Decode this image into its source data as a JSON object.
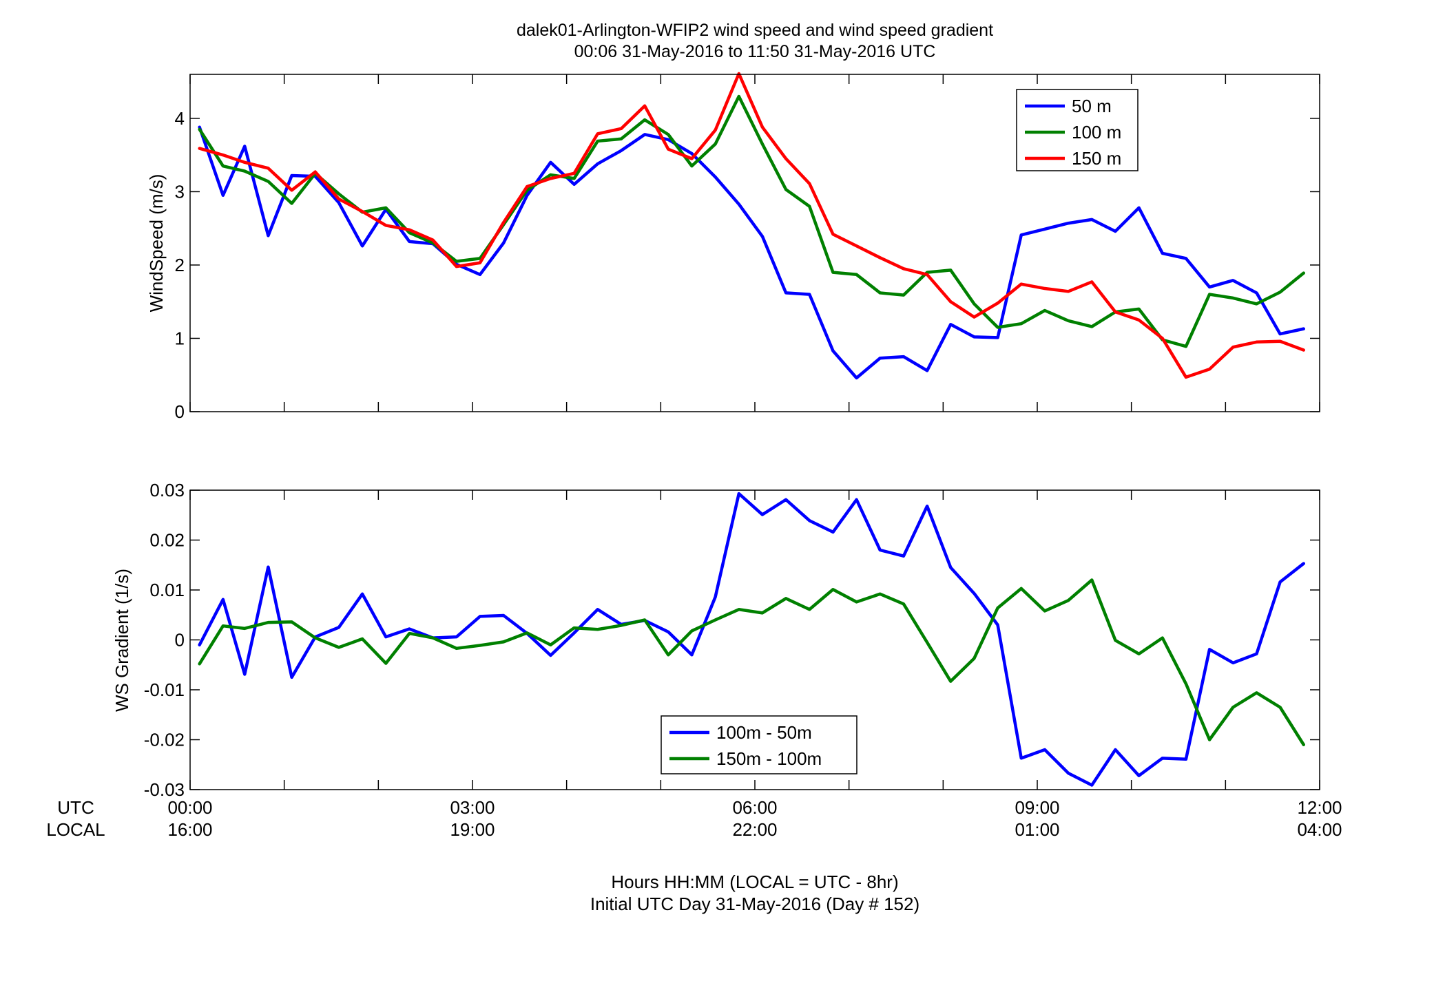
{
  "figure": {
    "title_line1": "dalek01-Arlington-WFIP2  wind speed and wind speed gradient",
    "title_line2": "00:06 31-May-2016 to 11:50 31-May-2016  UTC",
    "x_row_labels": [
      "UTC",
      "LOCAL"
    ],
    "xlabel_line1": "Hours HH:MM  (LOCAL = UTC - 8hr)",
    "xlabel_line2": "Initial UTC Day 31-May-2016 (Day # 152)"
  },
  "chart_data": [
    {
      "type": "line",
      "title": "",
      "xlabel": "",
      "ylabel": "WindSpeed (m/s)",
      "xlim": [
        0,
        12
      ],
      "ylim": [
        0,
        4.6
      ],
      "yticks": [
        0,
        1,
        2,
        3,
        4
      ],
      "ytick_labels": [
        "0",
        "1",
        "2",
        "3",
        "4"
      ],
      "grid": false,
      "legend_position": "top-right",
      "x": [
        0.1,
        0.35,
        0.58,
        0.83,
        1.08,
        1.33,
        1.58,
        1.83,
        2.08,
        2.33,
        2.58,
        2.83,
        3.08,
        3.33,
        3.58,
        3.83,
        4.08,
        4.33,
        4.58,
        4.83,
        5.08,
        5.33,
        5.58,
        5.83,
        6.08,
        6.33,
        6.58,
        6.83,
        7.08,
        7.33,
        7.58,
        7.83,
        8.08,
        8.33,
        8.58,
        8.83,
        9.08,
        9.33,
        9.58,
        9.83,
        10.08,
        10.33,
        10.58,
        10.83,
        11.08,
        11.33,
        11.58,
        11.83
      ],
      "series": [
        {
          "name": "50 m",
          "color": "#0000ff",
          "values": [
            3.88,
            2.95,
            3.62,
            2.4,
            3.22,
            3.21,
            2.85,
            2.26,
            2.76,
            2.32,
            2.29,
            2.01,
            1.87,
            2.3,
            2.95,
            3.4,
            3.1,
            3.38,
            3.56,
            3.78,
            3.71,
            3.52,
            3.2,
            2.83,
            2.39,
            1.62,
            1.6,
            0.83,
            0.46,
            0.73,
            0.75,
            0.56,
            1.19,
            1.02,
            1.01,
            2.41,
            2.49,
            2.57,
            2.62,
            2.46,
            2.78,
            2.16,
            2.09,
            1.7,
            1.79,
            1.62,
            1.06,
            1.13
          ]
        },
        {
          "name": "100 m",
          "color": "#008000",
          "values": [
            3.85,
            3.35,
            3.28,
            3.14,
            2.84,
            3.25,
            2.97,
            2.72,
            2.78,
            2.44,
            2.3,
            2.05,
            2.09,
            2.55,
            3.02,
            3.23,
            3.18,
            3.69,
            3.72,
            3.98,
            3.78,
            3.35,
            3.65,
            4.3,
            3.65,
            3.03,
            2.8,
            1.9,
            1.87,
            1.62,
            1.59,
            1.9,
            1.93,
            1.47,
            1.15,
            1.2,
            1.38,
            1.24,
            1.16,
            1.36,
            1.4,
            0.98,
            0.89,
            1.6,
            1.55,
            1.47,
            1.63,
            1.89
          ]
        },
        {
          "name": "150 m",
          "color": "#ff0000",
          "values": [
            3.59,
            3.5,
            3.4,
            3.32,
            3.02,
            3.27,
            2.9,
            2.73,
            2.54,
            2.48,
            2.34,
            1.98,
            2.03,
            2.58,
            3.07,
            3.18,
            3.25,
            3.79,
            3.86,
            4.17,
            3.58,
            3.45,
            3.84,
            4.61,
            3.88,
            3.45,
            3.11,
            2.42,
            2.26,
            2.1,
            1.95,
            1.87,
            1.5,
            1.29,
            1.48,
            1.74,
            1.68,
            1.64,
            1.77,
            1.36,
            1.25,
            1.0,
            0.47,
            0.58,
            0.88,
            0.95,
            0.96,
            0.84
          ]
        }
      ]
    },
    {
      "type": "line",
      "title": "",
      "xlabel": "",
      "ylabel": "WS Gradient (1/s)",
      "xlim": [
        0,
        12
      ],
      "ylim": [
        -0.03,
        0.03
      ],
      "yticks": [
        -0.03,
        -0.02,
        -0.01,
        0,
        0.01,
        0.02,
        0.03
      ],
      "ytick_labels": [
        "-0.03",
        "-0.02",
        "-0.01",
        "0",
        "0.01",
        "0.02",
        "0.03"
      ],
      "xticks": [
        0,
        3,
        6,
        9,
        12
      ],
      "xtick_labels_utc": [
        "00:00",
        "03:00",
        "06:00",
        "09:00",
        "12:00"
      ],
      "xtick_labels_local": [
        "16:00",
        "19:00",
        "22:00",
        "01:00",
        "04:00"
      ],
      "grid": false,
      "legend_position": "bottom-center",
      "x": [
        0.1,
        0.35,
        0.58,
        0.83,
        1.08,
        1.33,
        1.58,
        1.83,
        2.08,
        2.33,
        2.58,
        2.83,
        3.08,
        3.33,
        3.58,
        3.83,
        4.08,
        4.33,
        4.58,
        4.83,
        5.08,
        5.33,
        5.58,
        5.83,
        6.08,
        6.33,
        6.58,
        6.83,
        7.08,
        7.33,
        7.58,
        7.83,
        8.08,
        8.33,
        8.58,
        8.83,
        9.08,
        9.33,
        9.58,
        9.83,
        10.08,
        10.33,
        10.58,
        10.83,
        11.08,
        11.33,
        11.58,
        11.83
      ],
      "series": [
        {
          "name": "100m - 50m",
          "color": "#0000ff",
          "values": [
            -0.001,
            0.0081,
            -0.0069,
            0.0146,
            -0.0075,
            0.0006,
            0.0025,
            0.0092,
            0.0006,
            0.0022,
            0.0004,
            0.0006,
            0.0047,
            0.0049,
            0.0013,
            -0.0031,
            0.0014,
            0.0061,
            0.0031,
            0.0039,
            0.0016,
            -0.003,
            0.0086,
            0.0293,
            0.0251,
            0.0281,
            0.0239,
            0.0216,
            0.0281,
            0.018,
            0.0168,
            0.0268,
            0.0145,
            0.0093,
            0.003,
            -0.0237,
            -0.022,
            -0.0267,
            -0.0291,
            -0.022,
            -0.0272,
            -0.0237,
            -0.0239,
            -0.0019,
            -0.0046,
            -0.0028,
            0.0116,
            0.0153
          ]
        },
        {
          "name": "150m - 100m",
          "color": "#008000",
          "values": [
            -0.0048,
            0.0028,
            0.0023,
            0.0035,
            0.0036,
            0.0004,
            -0.0015,
            0.0002,
            -0.0047,
            0.0013,
            0.0004,
            -0.0017,
            -0.0011,
            -0.0004,
            0.0014,
            -0.001,
            0.0024,
            0.0021,
            0.0029,
            0.004,
            -0.003,
            0.0018,
            0.004,
            0.0061,
            0.0054,
            0.0083,
            0.0061,
            0.0101,
            0.0076,
            0.0092,
            0.0072,
            -0.0005,
            -0.0083,
            -0.0037,
            0.0064,
            0.0103,
            0.0058,
            0.0079,
            0.012,
            -0.0001,
            -0.0028,
            0.0004,
            -0.0088,
            -0.02,
            -0.0135,
            -0.0106,
            -0.0135,
            -0.021
          ]
        }
      ]
    }
  ]
}
